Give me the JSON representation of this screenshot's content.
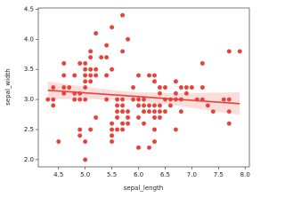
{
  "chart_data": {
    "type": "scatter",
    "x_label": "sepal_length",
    "y_label": "sepal_width",
    "color": "#e8413a",
    "x": [
      5.1,
      4.9,
      4.7,
      4.6,
      5.0,
      5.4,
      4.6,
      5.0,
      4.4,
      4.9,
      5.4,
      4.8,
      4.8,
      4.3,
      5.8,
      5.7,
      5.4,
      5.1,
      5.7,
      5.1,
      5.4,
      5.1,
      4.6,
      5.1,
      4.8,
      5.0,
      5.0,
      5.2,
      5.2,
      4.7,
      4.8,
      5.4,
      5.2,
      5.5,
      4.9,
      5.0,
      5.5,
      4.9,
      4.4,
      5.1,
      5.0,
      4.5,
      4.4,
      5.0,
      5.1,
      4.8,
      5.1,
      4.6,
      5.3,
      5.0,
      7.0,
      6.4,
      6.9,
      5.5,
      6.5,
      5.7,
      6.3,
      4.9,
      6.6,
      5.2,
      5.0,
      5.9,
      6.0,
      6.1,
      5.6,
      6.7,
      5.6,
      5.8,
      6.2,
      5.6,
      5.9,
      6.1,
      6.3,
      6.1,
      6.4,
      6.6,
      6.8,
      6.7,
      6.0,
      5.7,
      5.5,
      5.5,
      5.8,
      6.0,
      5.4,
      6.0,
      6.7,
      6.3,
      5.6,
      5.5,
      5.5,
      6.1,
      5.8,
      5.0,
      5.6,
      5.7,
      5.7,
      6.2,
      5.1,
      5.7,
      6.3,
      5.8,
      7.1,
      6.3,
      6.5,
      7.6,
      4.9,
      7.3,
      6.7,
      7.2,
      6.5,
      6.4,
      6.8,
      5.7,
      5.8,
      6.4,
      6.5,
      7.7,
      7.7,
      6.0,
      6.9,
      5.6,
      7.7,
      6.3,
      6.7,
      7.2,
      6.2,
      6.1,
      6.4,
      7.2,
      7.4,
      7.9,
      6.4,
      6.3,
      6.1,
      7.7,
      6.3,
      6.4,
      6.0,
      6.9,
      6.7,
      6.9,
      5.8,
      6.8,
      6.7,
      6.7,
      6.3,
      6.5,
      6.2,
      5.9
    ],
    "values": [
      3.5,
      3.0,
      3.2,
      3.1,
      3.6,
      3.9,
      3.4,
      3.4,
      2.9,
      3.1,
      3.7,
      3.4,
      3.0,
      3.0,
      4.0,
      4.4,
      3.9,
      3.5,
      3.8,
      3.8,
      3.4,
      3.7,
      3.6,
      3.3,
      3.4,
      3.0,
      3.4,
      3.5,
      3.4,
      3.2,
      3.1,
      3.4,
      4.1,
      4.2,
      3.1,
      3.2,
      3.5,
      3.6,
      3.0,
      3.4,
      3.5,
      2.3,
      3.2,
      3.5,
      3.8,
      3.0,
      3.8,
      3.2,
      3.7,
      3.3,
      3.2,
      3.2,
      3.1,
      2.3,
      2.8,
      2.8,
      3.3,
      2.4,
      2.9,
      2.7,
      2.0,
      3.0,
      2.2,
      2.9,
      2.9,
      3.1,
      3.0,
      2.7,
      2.2,
      2.5,
      3.2,
      2.8,
      2.5,
      2.8,
      2.9,
      3.0,
      2.8,
      3.0,
      2.9,
      2.6,
      2.4,
      2.4,
      2.7,
      2.7,
      3.0,
      3.4,
      3.1,
      2.3,
      3.0,
      2.5,
      2.6,
      3.0,
      2.6,
      2.3,
      2.7,
      3.0,
      2.9,
      2.9,
      2.5,
      2.8,
      3.3,
      2.7,
      3.0,
      2.9,
      3.0,
      3.0,
      2.5,
      2.9,
      2.5,
      3.6,
      3.2,
      2.7,
      3.0,
      2.5,
      2.8,
      3.2,
      3.0,
      3.8,
      2.6,
      2.2,
      3.2,
      2.8,
      2.8,
      2.7,
      3.3,
      3.2,
      2.8,
      3.0,
      2.8,
      3.0,
      2.8,
      3.8,
      2.8,
      2.8,
      2.6,
      3.0,
      3.4,
      3.1,
      3.0,
      3.1,
      3.1,
      3.1,
      2.7,
      3.2,
      3.3,
      3.0,
      2.5,
      3.0,
      3.4,
      3.0
    ],
    "regression": {
      "x": [
        4.3,
        7.9
      ],
      "values": [
        3.153,
        2.93
      ]
    },
    "ci": {
      "x": [
        4.3,
        5.0,
        5.8,
        6.6,
        7.9
      ],
      "lower": [
        3.005,
        3.009,
        2.99,
        2.915,
        2.742
      ],
      "upper": [
        3.301,
        3.209,
        3.13,
        3.105,
        3.118
      ]
    },
    "xlim": [
      4.12,
      8.08
    ],
    "ylim": [
      1.88,
      4.52
    ],
    "xticks": [
      4.5,
      {
        "value": 5,
        "label": "5.0"
      },
      5.5,
      {
        "value": 6,
        "label": "6.0"
      },
      6.5,
      {
        "value": 7,
        "label": "7.0"
      },
      7.5,
      {
        "value": 8,
        "label": "8.0"
      }
    ],
    "yticks": [
      {
        "value": 2,
        "label": "2.0"
      },
      2.5,
      {
        "value": 3,
        "label": "3.0"
      },
      3.5,
      {
        "value": 4,
        "label": "4.0"
      },
      4.5
    ]
  }
}
